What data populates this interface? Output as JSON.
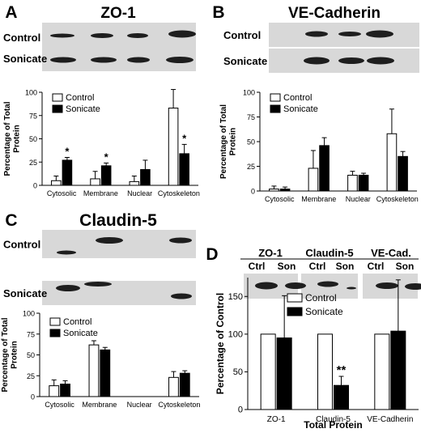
{
  "colors": {
    "control_fill": "#ffffff",
    "sonicate_fill": "#000000",
    "blot_bg": "#d8d8d8",
    "band": "#1e1e1e"
  },
  "legend": {
    "control": "Control",
    "sonicate": "Sonicate"
  },
  "panels": [
    {
      "letter": "A",
      "title": "ZO-1",
      "row_labels": [
        "Control",
        "Sonicate"
      ],
      "chart_data": {
        "type": "bar",
        "categories": [
          "Cytosolic",
          "Membrane",
          "Nuclear",
          "Cytoskeleton"
        ],
        "series": [
          {
            "name": "Control",
            "values": [
              5,
              7,
              4,
              83
            ],
            "errors": [
              5,
              8,
              6,
              20
            ]
          },
          {
            "name": "Sonicate",
            "values": [
              27,
              21,
              17,
              34
            ],
            "errors": [
              3,
              3,
              10,
              10
            ]
          }
        ],
        "ylabel": "Percentage of Total Protein",
        "ylim": [
          0,
          100
        ],
        "yticks": [
          0,
          25,
          50,
          75,
          100
        ],
        "significance": [
          {
            "category": 0,
            "series": 1,
            "label": "*"
          },
          {
            "category": 1,
            "series": 1,
            "label": "*"
          },
          {
            "category": 3,
            "series": 1,
            "label": "*"
          }
        ]
      }
    },
    {
      "letter": "B",
      "title": "VE-Cadherin",
      "row_labels": [
        "Control",
        "Sonicate"
      ],
      "chart_data": {
        "type": "bar",
        "categories": [
          "Cytosolic",
          "Membrane",
          "Nuclear",
          "Cytoskeleton"
        ],
        "series": [
          {
            "name": "Control",
            "values": [
              2,
              23,
              16,
              58
            ],
            "errors": [
              3,
              18,
              4,
              25
            ]
          },
          {
            "name": "Sonicate",
            "values": [
              2,
              46,
              16,
              35
            ],
            "errors": [
              2,
              8,
              2,
              5
            ]
          }
        ],
        "ylabel": "Percentage of Total Protein",
        "ylim": [
          0,
          100
        ],
        "yticks": [
          0,
          25,
          50,
          75,
          100
        ],
        "significance": []
      }
    },
    {
      "letter": "C",
      "title": "Claudin-5",
      "row_labels": [
        "Control",
        "Sonicate"
      ],
      "chart_data": {
        "type": "bar",
        "categories": [
          "Cytosolic",
          "Membrane",
          "Nuclear",
          "Cytoskeleton"
        ],
        "series": [
          {
            "name": "Control",
            "values": [
              13,
              62,
              0,
              23
            ],
            "errors": [
              7,
              5,
              0,
              7
            ]
          },
          {
            "name": "Sonicate",
            "values": [
              15,
              56,
              0,
              28
            ],
            "errors": [
              4,
              3,
              0,
              3
            ]
          }
        ],
        "ylabel": "Percentage of Total Protein",
        "ylim": [
          0,
          100
        ],
        "yticks": [
          0,
          25,
          50,
          75,
          100
        ],
        "significance": []
      }
    },
    {
      "letter": "D",
      "blot_headers": [
        {
          "title": "ZO-1",
          "lanes": [
            "Ctrl",
            "Son"
          ]
        },
        {
          "title": "Claudin-5",
          "lanes": [
            "Ctrl",
            "Son"
          ]
        },
        {
          "title": "VE-Cad.",
          "lanes": [
            "Ctrl",
            "Son"
          ]
        }
      ],
      "chart_data": {
        "type": "bar",
        "categories": [
          "ZO-1",
          "Claudin-5",
          "VE-Cadherin"
        ],
        "series": [
          {
            "name": "Control",
            "values": [
              100,
              100,
              100
            ],
            "errors": [
              0,
              0,
              0
            ]
          },
          {
            "name": "Sonicate",
            "values": [
              95,
              32,
              104
            ],
            "errors": [
              56,
              12,
              68
            ]
          }
        ],
        "xlabel": "Total Protein",
        "ylabel": "Percentage of Control",
        "ylim": [
          0,
          175
        ],
        "yticks": [
          0,
          50,
          100,
          150
        ],
        "significance": [
          {
            "category": 1,
            "series": 1,
            "label": "**"
          }
        ]
      }
    }
  ]
}
